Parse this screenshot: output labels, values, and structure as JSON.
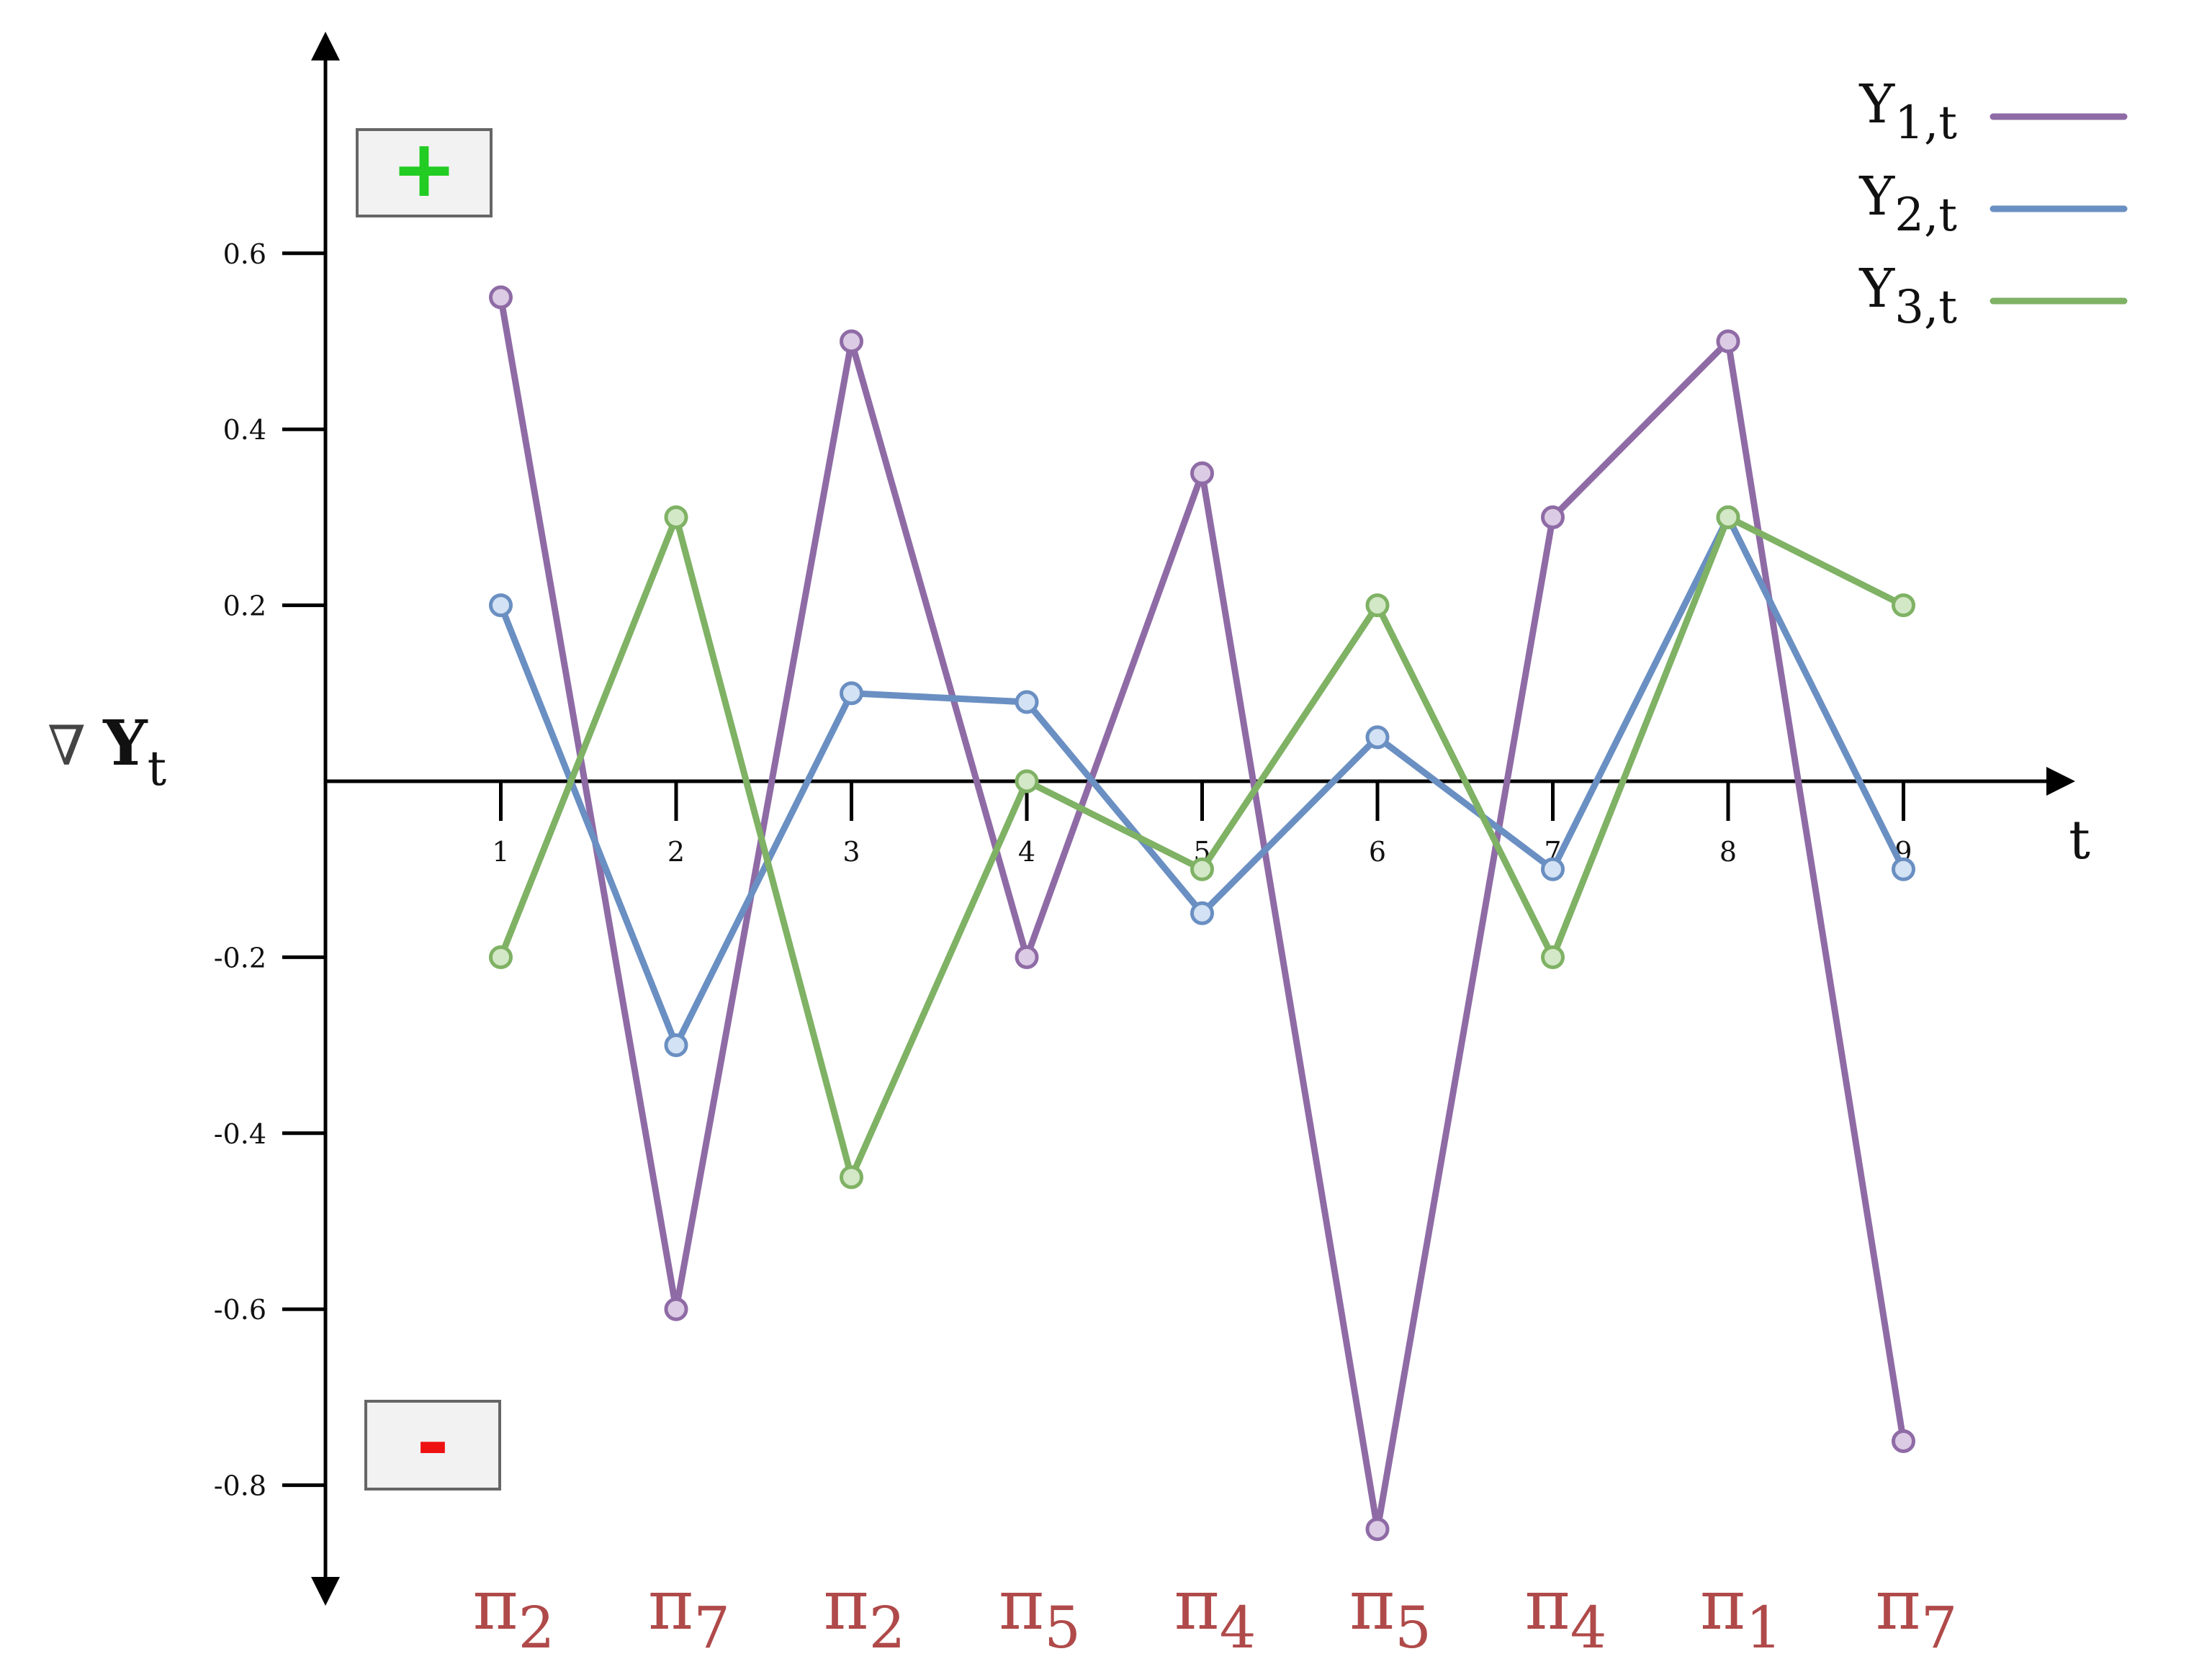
{
  "chart_data": {
    "type": "line",
    "x": [
      1,
      2,
      3,
      4,
      5,
      6,
      7,
      8,
      9
    ],
    "series": [
      {
        "name": "Y",
        "subscript": "1,t",
        "color": "#8f6ba6",
        "marker_fill": "#dccbe4",
        "values": [
          0.55,
          -0.6,
          0.5,
          -0.2,
          0.35,
          -0.85,
          0.3,
          0.5,
          -0.75
        ]
      },
      {
        "name": "Y",
        "subscript": "2,t",
        "color": "#6a8fc2",
        "marker_fill": "#d3e2f4",
        "values": [
          0.2,
          -0.3,
          0.1,
          0.09,
          -0.15,
          0.05,
          -0.1,
          0.3,
          -0.1
        ]
      },
      {
        "name": "Y",
        "subscript": "3,t",
        "color": "#7fb264",
        "marker_fill": "#d3e8c6",
        "values": [
          -0.2,
          0.3,
          -0.45,
          0.0,
          -0.1,
          0.2,
          -0.2,
          0.3,
          0.2
        ]
      }
    ],
    "y_ticks": [
      "0.6",
      "0.4",
      "0.2",
      "-0.2",
      "-0.4",
      "-0.6",
      "-0.8"
    ],
    "y_tick_values": [
      0.6,
      0.4,
      0.2,
      -0.2,
      -0.4,
      -0.6,
      -0.8
    ],
    "x_ticks": [
      "1",
      "2",
      "3",
      "4",
      "5",
      "6",
      "7",
      "8",
      "9"
    ],
    "ylim": [
      -0.9,
      0.75
    ],
    "xlabel": "t",
    "ylabel": {
      "prefix": "∇ ",
      "main": "Y",
      "sub": "t"
    },
    "grid": false,
    "legend_position": "top-right",
    "category_labels": [
      {
        "symbol": "π",
        "sub": "2"
      },
      {
        "symbol": "π",
        "sub": "7"
      },
      {
        "symbol": "π",
        "sub": "2"
      },
      {
        "symbol": "π",
        "sub": "5"
      },
      {
        "symbol": "π",
        "sub": "4"
      },
      {
        "symbol": "π",
        "sub": "5"
      },
      {
        "symbol": "π",
        "sub": "4"
      },
      {
        "symbol": "π",
        "sub": "1"
      },
      {
        "symbol": "π",
        "sub": "7"
      }
    ],
    "category_label_color": "#b04a4a",
    "sign_boxes": {
      "positive": "+",
      "negative": "-",
      "positive_color": "#22cc22",
      "negative_color": "#ee1111"
    }
  }
}
